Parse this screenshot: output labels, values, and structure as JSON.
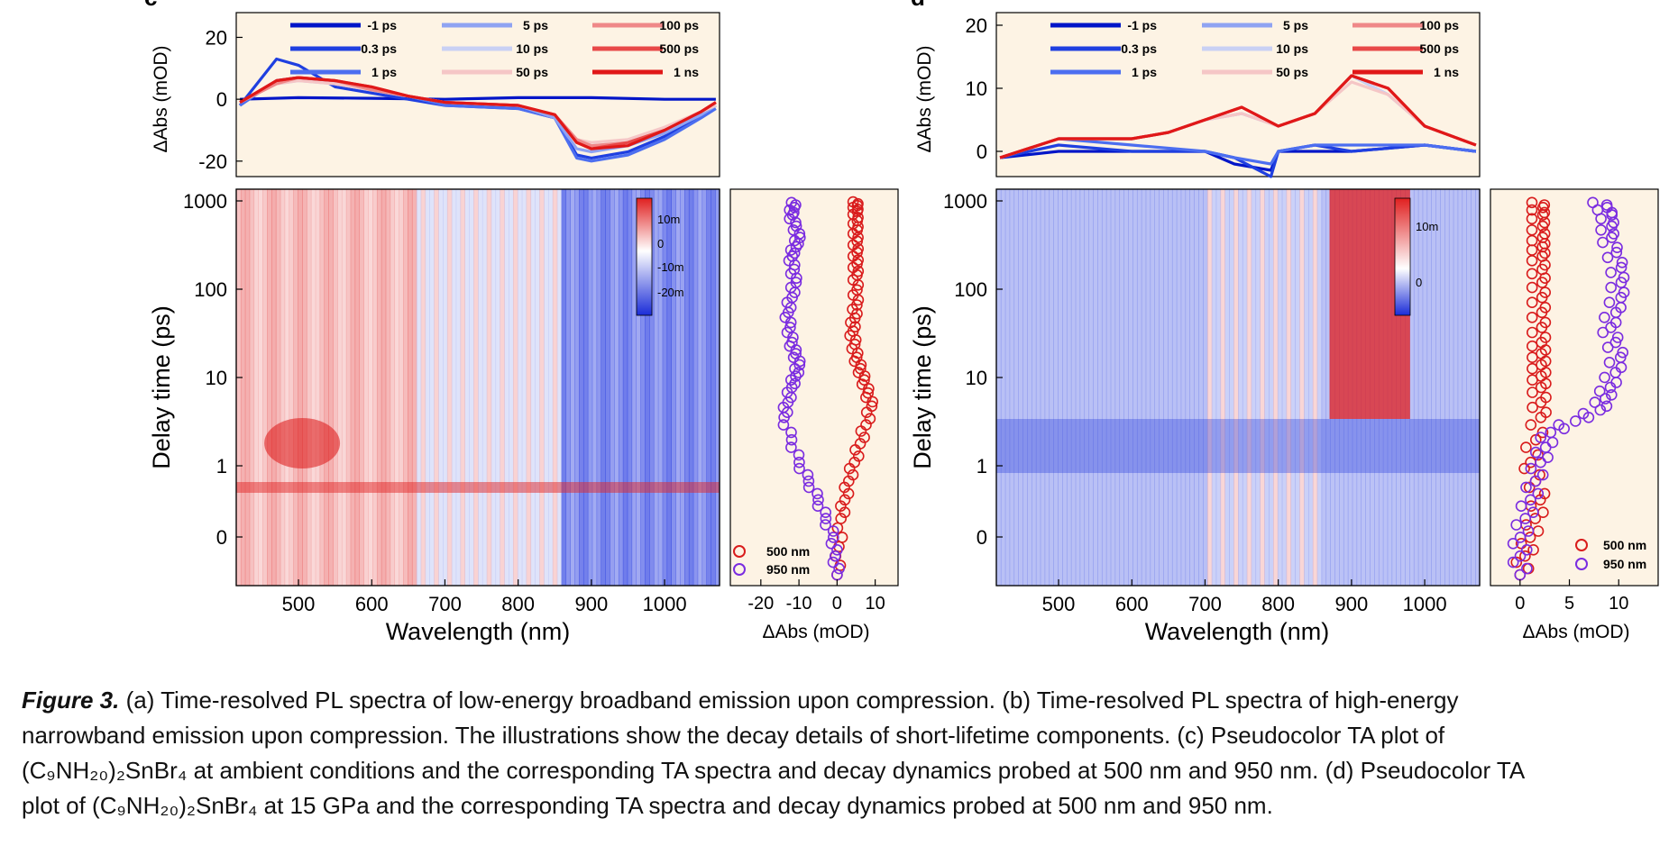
{
  "figure": {
    "panel_c_label": "c",
    "panel_d_label": "d",
    "xlabel_main": "Wavelength (nm)",
    "ylabel_spec": "ΔAbs (mOD)",
    "ylabel_delay": "Delay time (ps)",
    "xlabel_kinetics": "ΔAbs (mOD)",
    "legend_delays": [
      "-1 ps",
      "0.3 ps",
      "1 ps",
      "5 ps",
      "10 ps",
      "50 ps",
      "100 ps",
      "500 ps",
      "1 ns"
    ],
    "legend_probe": [
      "500 nm",
      "950 nm"
    ],
    "colorbar_c": [
      "10m",
      "0",
      "-10m",
      "-20m"
    ],
    "colorbar_d": [
      "10m",
      "0"
    ]
  },
  "caption": {
    "lead": "Figure 3.",
    "lines": [
      " (a) Time-resolved PL spectra of low-energy broadband emission upon compression. (b) Time-resolved PL spectra of high-energy",
      "narrowband emission upon compression. The illustrations show the decay details of short-lifetime components. (c) Pseudocolor TA plot of",
      "(C₉NH₂₀)₂SnBr₄ at ambient conditions and the corresponding TA spectra and decay dynamics probed at 500 nm and 950 nm. (d) Pseudocolor TA",
      "plot of (C₉NH₂₀)₂SnBr₄ at 15 GPa and the corresponding TA spectra and decay dynamics probed at 500 nm and 950 nm."
    ]
  },
  "chart_data": [
    {
      "id": "c-spectra",
      "type": "line",
      "xlim": [
        415,
        1075
      ],
      "ylim": [
        -25,
        28
      ],
      "yticks": [
        20,
        0,
        -20
      ],
      "xticks": [],
      "ylabel": "ΔAbs (mOD)",
      "series": [
        {
          "name": "-1 ps",
          "color": "#0015c8",
          "x": [
            420,
            500,
            600,
            700,
            800,
            900,
            1000,
            1070
          ],
          "y": [
            0,
            0.5,
            0.3,
            0,
            0.5,
            0.5,
            0,
            0
          ]
        },
        {
          "name": "0.3 ps",
          "color": "#1f3fe0",
          "x": [
            420,
            470,
            500,
            550,
            600,
            650,
            700,
            800,
            850,
            880,
            900,
            950,
            1000,
            1050,
            1070
          ],
          "y": [
            -2,
            13,
            11,
            4,
            2,
            0,
            -2,
            -3,
            -6,
            -18,
            -19,
            -17,
            -12,
            -5,
            -2
          ]
        },
        {
          "name": "1 ps",
          "color": "#4c6ef0",
          "x": [
            420,
            470,
            500,
            550,
            600,
            650,
            700,
            800,
            850,
            880,
            900,
            950,
            1000,
            1050,
            1070
          ],
          "y": [
            -2,
            6,
            7,
            5,
            3,
            1,
            -2,
            -3,
            -6,
            -19,
            -20,
            -18,
            -13,
            -6,
            -3
          ]
        },
        {
          "name": "5 ps",
          "color": "#8fa3f2",
          "x": [
            420,
            470,
            500,
            550,
            600,
            650,
            700,
            800,
            850,
            880,
            900,
            950,
            1000,
            1050,
            1070
          ],
          "y": [
            -1,
            6,
            7,
            5,
            3,
            1,
            -1,
            -2,
            -6,
            -16,
            -17,
            -15,
            -11,
            -5,
            -2
          ]
        },
        {
          "name": "10 ps",
          "color": "#c9d0f4",
          "x": [
            420,
            470,
            500,
            550,
            600,
            650,
            700,
            800,
            850,
            880,
            900,
            950,
            1000,
            1050,
            1070
          ],
          "y": [
            -1,
            5,
            6,
            5,
            3,
            1,
            -1,
            -2,
            -5,
            -14,
            -15,
            -14,
            -10,
            -4,
            -2
          ]
        },
        {
          "name": "50 ps",
          "color": "#f5c6c6",
          "x": [
            420,
            470,
            500,
            550,
            600,
            650,
            700,
            800,
            850,
            880,
            900,
            950,
            1000,
            1050,
            1070
          ],
          "y": [
            -1,
            5,
            6,
            5,
            3,
            1,
            -1,
            -2,
            -5,
            -13,
            -14,
            -13,
            -9,
            -4,
            -2
          ]
        },
        {
          "name": "100 ps",
          "color": "#ef8888",
          "x": [
            420,
            470,
            500,
            550,
            600,
            650,
            700,
            800,
            850,
            880,
            900,
            950,
            1000,
            1050,
            1070
          ],
          "y": [
            -1,
            5,
            7,
            6,
            3,
            1,
            -1,
            -2,
            -5,
            -13,
            -15,
            -14,
            -10,
            -4,
            -1
          ]
        },
        {
          "name": "500 ps",
          "color": "#e84848",
          "x": [
            420,
            470,
            500,
            550,
            600,
            650,
            700,
            800,
            850,
            880,
            900,
            950,
            1000,
            1050,
            1070
          ],
          "y": [
            -1,
            6,
            7,
            6,
            4,
            1,
            -1,
            -2,
            -5,
            -14,
            -16,
            -14,
            -10,
            -4,
            -1
          ]
        },
        {
          "name": "1 ns",
          "color": "#e01818",
          "x": [
            420,
            470,
            500,
            550,
            600,
            650,
            700,
            800,
            850,
            880,
            900,
            950,
            1000,
            1050,
            1070
          ],
          "y": [
            -1,
            6,
            7,
            6,
            4,
            1,
            -1,
            -2,
            -5,
            -14,
            -16,
            -15,
            -10,
            -4,
            -1
          ]
        }
      ]
    },
    {
      "id": "c-map",
      "type": "heatmap",
      "xlim": [
        415,
        1075
      ],
      "xticks": [
        500,
        600,
        700,
        800,
        900,
        1000
      ],
      "ytick_labels": [
        "1000",
        "100",
        "10",
        "1",
        "0"
      ],
      "xlabel": "Wavelength (nm)",
      "ylabel": "Delay time (ps)",
      "regions": [
        {
          "x": [
            415,
            660
          ],
          "sign": "positive",
          "note": "strong near 500 nm at 1 ps"
        },
        {
          "x": [
            860,
            1075
          ],
          "sign": "negative"
        }
      ]
    },
    {
      "id": "c-kinetics",
      "type": "scatter",
      "xlim": [
        -28,
        16
      ],
      "xticks": [
        -20,
        -10,
        0,
        10
      ],
      "xlabel": "ΔAbs (mOD)",
      "series": [
        {
          "name": "500 nm",
          "color": "#d91c1c",
          "x": [
            0,
            1,
            3,
            6,
            9,
            7,
            5,
            4,
            5,
            5,
            5,
            5,
            5,
            5
          ],
          "y_pos": [
            0.0,
            0.15,
            0.25,
            0.35,
            0.45,
            0.52,
            0.58,
            0.65,
            0.72,
            0.8,
            0.86,
            0.92,
            0.97,
            1.0
          ]
        },
        {
          "name": "950 nm",
          "color": "#7a2ce0",
          "x": [
            0,
            -1,
            -5,
            -10,
            -14,
            -12,
            -10,
            -12,
            -13,
            -11,
            -12,
            -10,
            -12,
            -11
          ],
          "y_pos": [
            0.0,
            0.1,
            0.2,
            0.3,
            0.42,
            0.5,
            0.56,
            0.62,
            0.7,
            0.78,
            0.85,
            0.9,
            0.96,
            1.0
          ]
        }
      ]
    },
    {
      "id": "d-spectra",
      "type": "line",
      "xlim": [
        415,
        1075
      ],
      "ylim": [
        -4,
        22
      ],
      "yticks": [
        20,
        10,
        0
      ],
      "xticks": [],
      "ylabel": "ΔAbs (mOD)",
      "series": [
        {
          "name": "-1 ps",
          "color": "#0015c8",
          "x": [
            420,
            500,
            600,
            700,
            740,
            790,
            800,
            850,
            900,
            1000,
            1070
          ],
          "y": [
            -1,
            0,
            0,
            0,
            -2,
            -3,
            0,
            0,
            0,
            1,
            0
          ]
        },
        {
          "name": "0.3 ps",
          "color": "#1f3fe0",
          "x": [
            420,
            500,
            600,
            700,
            740,
            790,
            800,
            850,
            900,
            1000,
            1070
          ],
          "y": [
            -1,
            1,
            0,
            0,
            -1,
            -4,
            0,
            1,
            0,
            1,
            0
          ]
        },
        {
          "name": "1 ps",
          "color": "#4c6ef0",
          "x": [
            420,
            500,
            600,
            700,
            740,
            790,
            800,
            850,
            900,
            1000,
            1070
          ],
          "y": [
            -1,
            2,
            1,
            0,
            -1,
            -2,
            0,
            1,
            1,
            1,
            0
          ]
        },
        {
          "name": "5 ps",
          "color": "#8fa3f2",
          "x": [
            420,
            500,
            600,
            650,
            700,
            750,
            800,
            850,
            900,
            950,
            1000,
            1070
          ],
          "y": [
            -1,
            2,
            2,
            3,
            5,
            6,
            4,
            6,
            12,
            9,
            4,
            1
          ]
        },
        {
          "name": "10 ps",
          "color": "#c9d0f4",
          "x": [
            420,
            500,
            600,
            650,
            700,
            750,
            800,
            850,
            900,
            950,
            1000,
            1070
          ],
          "y": [
            -1,
            2,
            2,
            3,
            5,
            6,
            4,
            6,
            12,
            9,
            4,
            1
          ]
        },
        {
          "name": "50 ps",
          "color": "#f5c6c6",
          "x": [
            420,
            500,
            600,
            650,
            700,
            750,
            800,
            850,
            900,
            950,
            1000,
            1070
          ],
          "y": [
            -1,
            2,
            2,
            3,
            5,
            6,
            4,
            6,
            11,
            9,
            4,
            1
          ]
        },
        {
          "name": "100 ps",
          "color": "#ef8888",
          "x": [
            420,
            500,
            600,
            650,
            700,
            750,
            800,
            850,
            900,
            950,
            1000,
            1070
          ],
          "y": [
            -1,
            2,
            2,
            3,
            5,
            7,
            4,
            6,
            12,
            10,
            4,
            1
          ]
        },
        {
          "name": "500 ps",
          "color": "#e84848",
          "x": [
            420,
            500,
            600,
            650,
            700,
            750,
            800,
            850,
            900,
            950,
            1000,
            1070
          ],
          "y": [
            -1,
            2,
            2,
            3,
            5,
            7,
            4,
            6,
            12,
            10,
            4,
            1
          ]
        },
        {
          "name": "1 ns",
          "color": "#e01818",
          "x": [
            420,
            500,
            600,
            650,
            700,
            750,
            800,
            850,
            900,
            950,
            1000,
            1070
          ],
          "y": [
            -1,
            2,
            2,
            3,
            5,
            7,
            4,
            6,
            12,
            10,
            4,
            1
          ]
        }
      ]
    },
    {
      "id": "d-map",
      "type": "heatmap",
      "xlim": [
        415,
        1075
      ],
      "xticks": [
        500,
        600,
        700,
        800,
        900,
        1000
      ],
      "ytick_labels": [
        "1000",
        "100",
        "10",
        "1",
        "0"
      ],
      "xlabel": "Wavelength (nm)",
      "ylabel": "Delay time (ps)",
      "regions": [
        {
          "x": [
            860,
            980
          ],
          "sign": "positive",
          "note": "after ~2 ps"
        },
        {
          "x": [
            415,
            1075
          ],
          "sign": "negative",
          "note": "weak background"
        }
      ]
    },
    {
      "id": "d-kinetics",
      "type": "scatter",
      "xlim": [
        -3,
        14
      ],
      "xticks": [
        0,
        5,
        10
      ],
      "xlabel": "ΔAbs (mOD)",
      "series": [
        {
          "name": "500 nm",
          "color": "#d91c1c",
          "x": [
            0,
            1,
            2,
            1,
            2,
            2,
            2,
            2,
            2,
            2,
            2,
            2,
            2,
            2
          ],
          "y_pos": [
            0.0,
            0.1,
            0.2,
            0.3,
            0.42,
            0.5,
            0.56,
            0.62,
            0.7,
            0.78,
            0.85,
            0.9,
            0.96,
            1.0
          ]
        },
        {
          "name": "950 nm",
          "color": "#7a2ce0",
          "x": [
            0,
            0,
            1,
            2,
            3,
            8,
            9,
            10,
            9,
            10,
            10,
            9,
            9,
            8
          ],
          "y_pos": [
            0.0,
            0.1,
            0.2,
            0.3,
            0.38,
            0.44,
            0.5,
            0.58,
            0.66,
            0.74,
            0.82,
            0.9,
            0.96,
            1.0
          ]
        }
      ]
    }
  ]
}
